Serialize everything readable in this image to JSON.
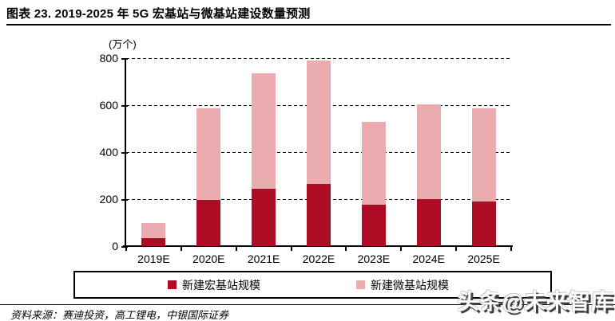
{
  "title": "图表 23. 2019-2025 年 5G 宏基站与微基站建设数量预测",
  "chart_data": {
    "type": "bar",
    "stacked": true,
    "unit_label": "(万个)",
    "categories": [
      "2019E",
      "2020E",
      "2021E",
      "2022E",
      "2023E",
      "2024E",
      "2025E"
    ],
    "series": [
      {
        "name": "新建宏基站规模",
        "color": "#AD0C24",
        "values": [
          35,
          195,
          245,
          265,
          175,
          200,
          190
        ]
      },
      {
        "name": "新建微基站规模",
        "color": "#EBACAF",
        "values": [
          65,
          390,
          490,
          525,
          355,
          405,
          395
        ]
      }
    ],
    "totals": [
      100,
      585,
      735,
      790,
      530,
      605,
      585
    ],
    "ylim": [
      0,
      800
    ],
    "yticks": [
      0,
      200,
      400,
      600,
      800
    ],
    "grid": "horizontal-dashed",
    "legend_position": "bottom-box"
  },
  "source_note": "资料来源：赛迪投资，高工锂电，中银国际证券",
  "watermark": "头条@未来智库",
  "colors": {
    "macro_bar": "#AD0C24",
    "micro_bar": "#EBACAF",
    "axis": "#000000",
    "background": "#ffffff"
  }
}
